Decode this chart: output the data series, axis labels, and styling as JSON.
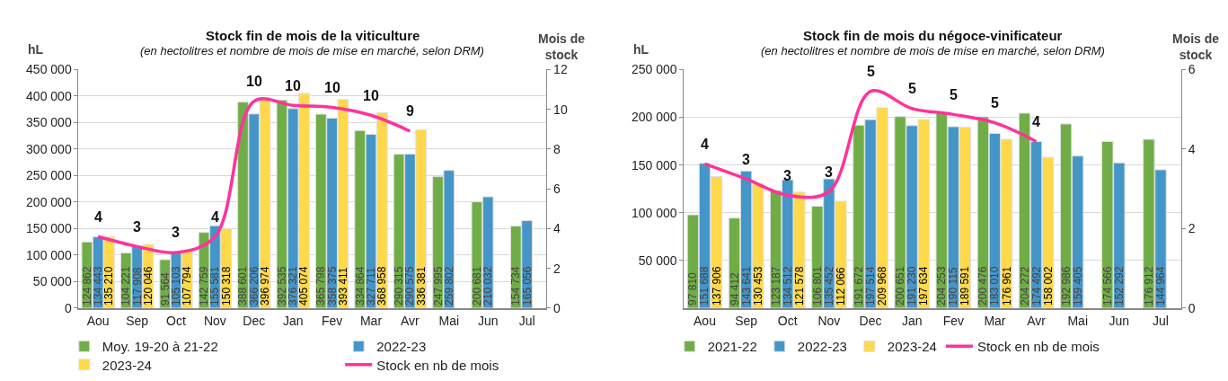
{
  "chart_data": [
    {
      "type": "bar",
      "title": "Stock fin de mois de la viticulture",
      "subtitle": "(en hectolitres et nombre de mois de mise en marché, selon DRM)",
      "ylabel": "hL",
      "y2label": "Mois de stock",
      "categories": [
        "Aou",
        "Sep",
        "Oct",
        "Nov",
        "Dec",
        "Jan",
        "Fev",
        "Mar",
        "Avr",
        "Mai",
        "Jun",
        "Jul"
      ],
      "series": [
        {
          "name": "Moy. 19-20 à 21-22",
          "color": "#70ad47",
          "values": [
            124862,
            104221,
            91564,
            142759,
            388601,
            392535,
            365798,
            334864,
            290315,
            247995,
            200681,
            154734
          ]
        },
        {
          "name": "2022-23",
          "color": "#4596c8",
          "values": [
            134443,
            117908,
            105103,
            155581,
            366206,
            376321,
            358375,
            327711,
            290575,
            259802,
            210032,
            165056
          ]
        },
        {
          "name": "2023-24",
          "color": "#ffd94a",
          "values": [
            135210,
            120046,
            107794,
            150318,
            396974,
            405074,
            393411,
            368958,
            336381,
            null,
            null,
            null
          ]
        },
        {
          "name": "Stock en nb de mois",
          "type": "line",
          "axis": "y2",
          "color": "#ff3399",
          "values": [
            3.6,
            3.1,
            2.8,
            3.6,
            10.4,
            10.2,
            10.1,
            9.7,
            8.9,
            null,
            null,
            null
          ],
          "value_labels": [
            "4",
            "3",
            "3",
            "4",
            "10",
            "10",
            "10",
            "10",
            "9",
            null,
            null,
            null
          ]
        }
      ],
      "data_labels": true,
      "ylim": [
        0,
        450000
      ],
      "yticks": [
        0,
        {
          "value": 50000,
          "label": "50 000"
        },
        {
          "value": 100000,
          "label": "100 000"
        },
        {
          "value": 150000,
          "label": "150 000"
        },
        {
          "value": 200000,
          "label": "200 000"
        },
        {
          "value": 250000,
          "label": "250 000"
        },
        {
          "value": 300000,
          "label": "300 000"
        },
        {
          "value": 350000,
          "label": "350 000"
        },
        {
          "value": 400000,
          "label": "400 000"
        },
        {
          "value": 450000,
          "label": "450 000"
        }
      ],
      "y2lim": [
        0,
        12
      ],
      "y2ticks": [
        0,
        2,
        4,
        6,
        8,
        10,
        12
      ],
      "grid": "y",
      "legend": "bottom"
    },
    {
      "type": "bar",
      "title": "Stock fin de mois du négoce-vinificateur",
      "subtitle": "(en hectolitres et nombre de mois de mise en marché, selon DRM)",
      "ylabel": "hL",
      "y2label": "Mois de stock",
      "categories": [
        "Aou",
        "Sep",
        "Oct",
        "Nov",
        "Dec",
        "Jan",
        "Fev",
        "Mar",
        "Avr",
        "Mai",
        "Jun",
        "Jul"
      ],
      "series": [
        {
          "name": "2021-22",
          "color": "#70ad47",
          "values": [
            97810,
            94412,
            123187,
            106801,
            191672,
            200651,
            204253,
            200476,
            204272,
            192986,
            174566,
            176912
          ]
        },
        {
          "name": "2022-23",
          "color": "#4596c8",
          "values": [
            151688,
            143641,
            134512,
            135452,
            197514,
            191230,
            190115,
            183010,
            174492,
            159405,
            152292,
            144964
          ]
        },
        {
          "name": "2023-24",
          "color": "#ffd94a",
          "values": [
            137906,
            130453,
            121578,
            112066,
            209968,
            197634,
            189591,
            176961,
            158002,
            null,
            null,
            null
          ]
        },
        {
          "name": "Stock en nb de mois",
          "type": "line",
          "axis": "y2",
          "color": "#ff3399",
          "values": [
            3.63,
            3.25,
            2.84,
            2.93,
            5.45,
            5.02,
            4.87,
            4.66,
            4.19,
            null,
            null,
            null
          ],
          "value_labels": [
            "4",
            "3",
            "3",
            "3",
            "5",
            "5",
            "5",
            "5",
            "4",
            null,
            null,
            null
          ]
        }
      ],
      "data_labels": true,
      "ylim": [
        0,
        250000
      ],
      "yticks": [
        {
          "value": 50000,
          "label": "50 000"
        },
        {
          "value": 100000,
          "label": "100 000"
        },
        {
          "value": 150000,
          "label": "150 000"
        },
        {
          "value": 200000,
          "label": "200 000"
        },
        {
          "value": 250000,
          "label": "250 000"
        }
      ],
      "y2lim": [
        0,
        6
      ],
      "y2ticks": [
        0,
        2,
        4,
        6
      ],
      "grid": "y",
      "legend": "bottom"
    }
  ]
}
